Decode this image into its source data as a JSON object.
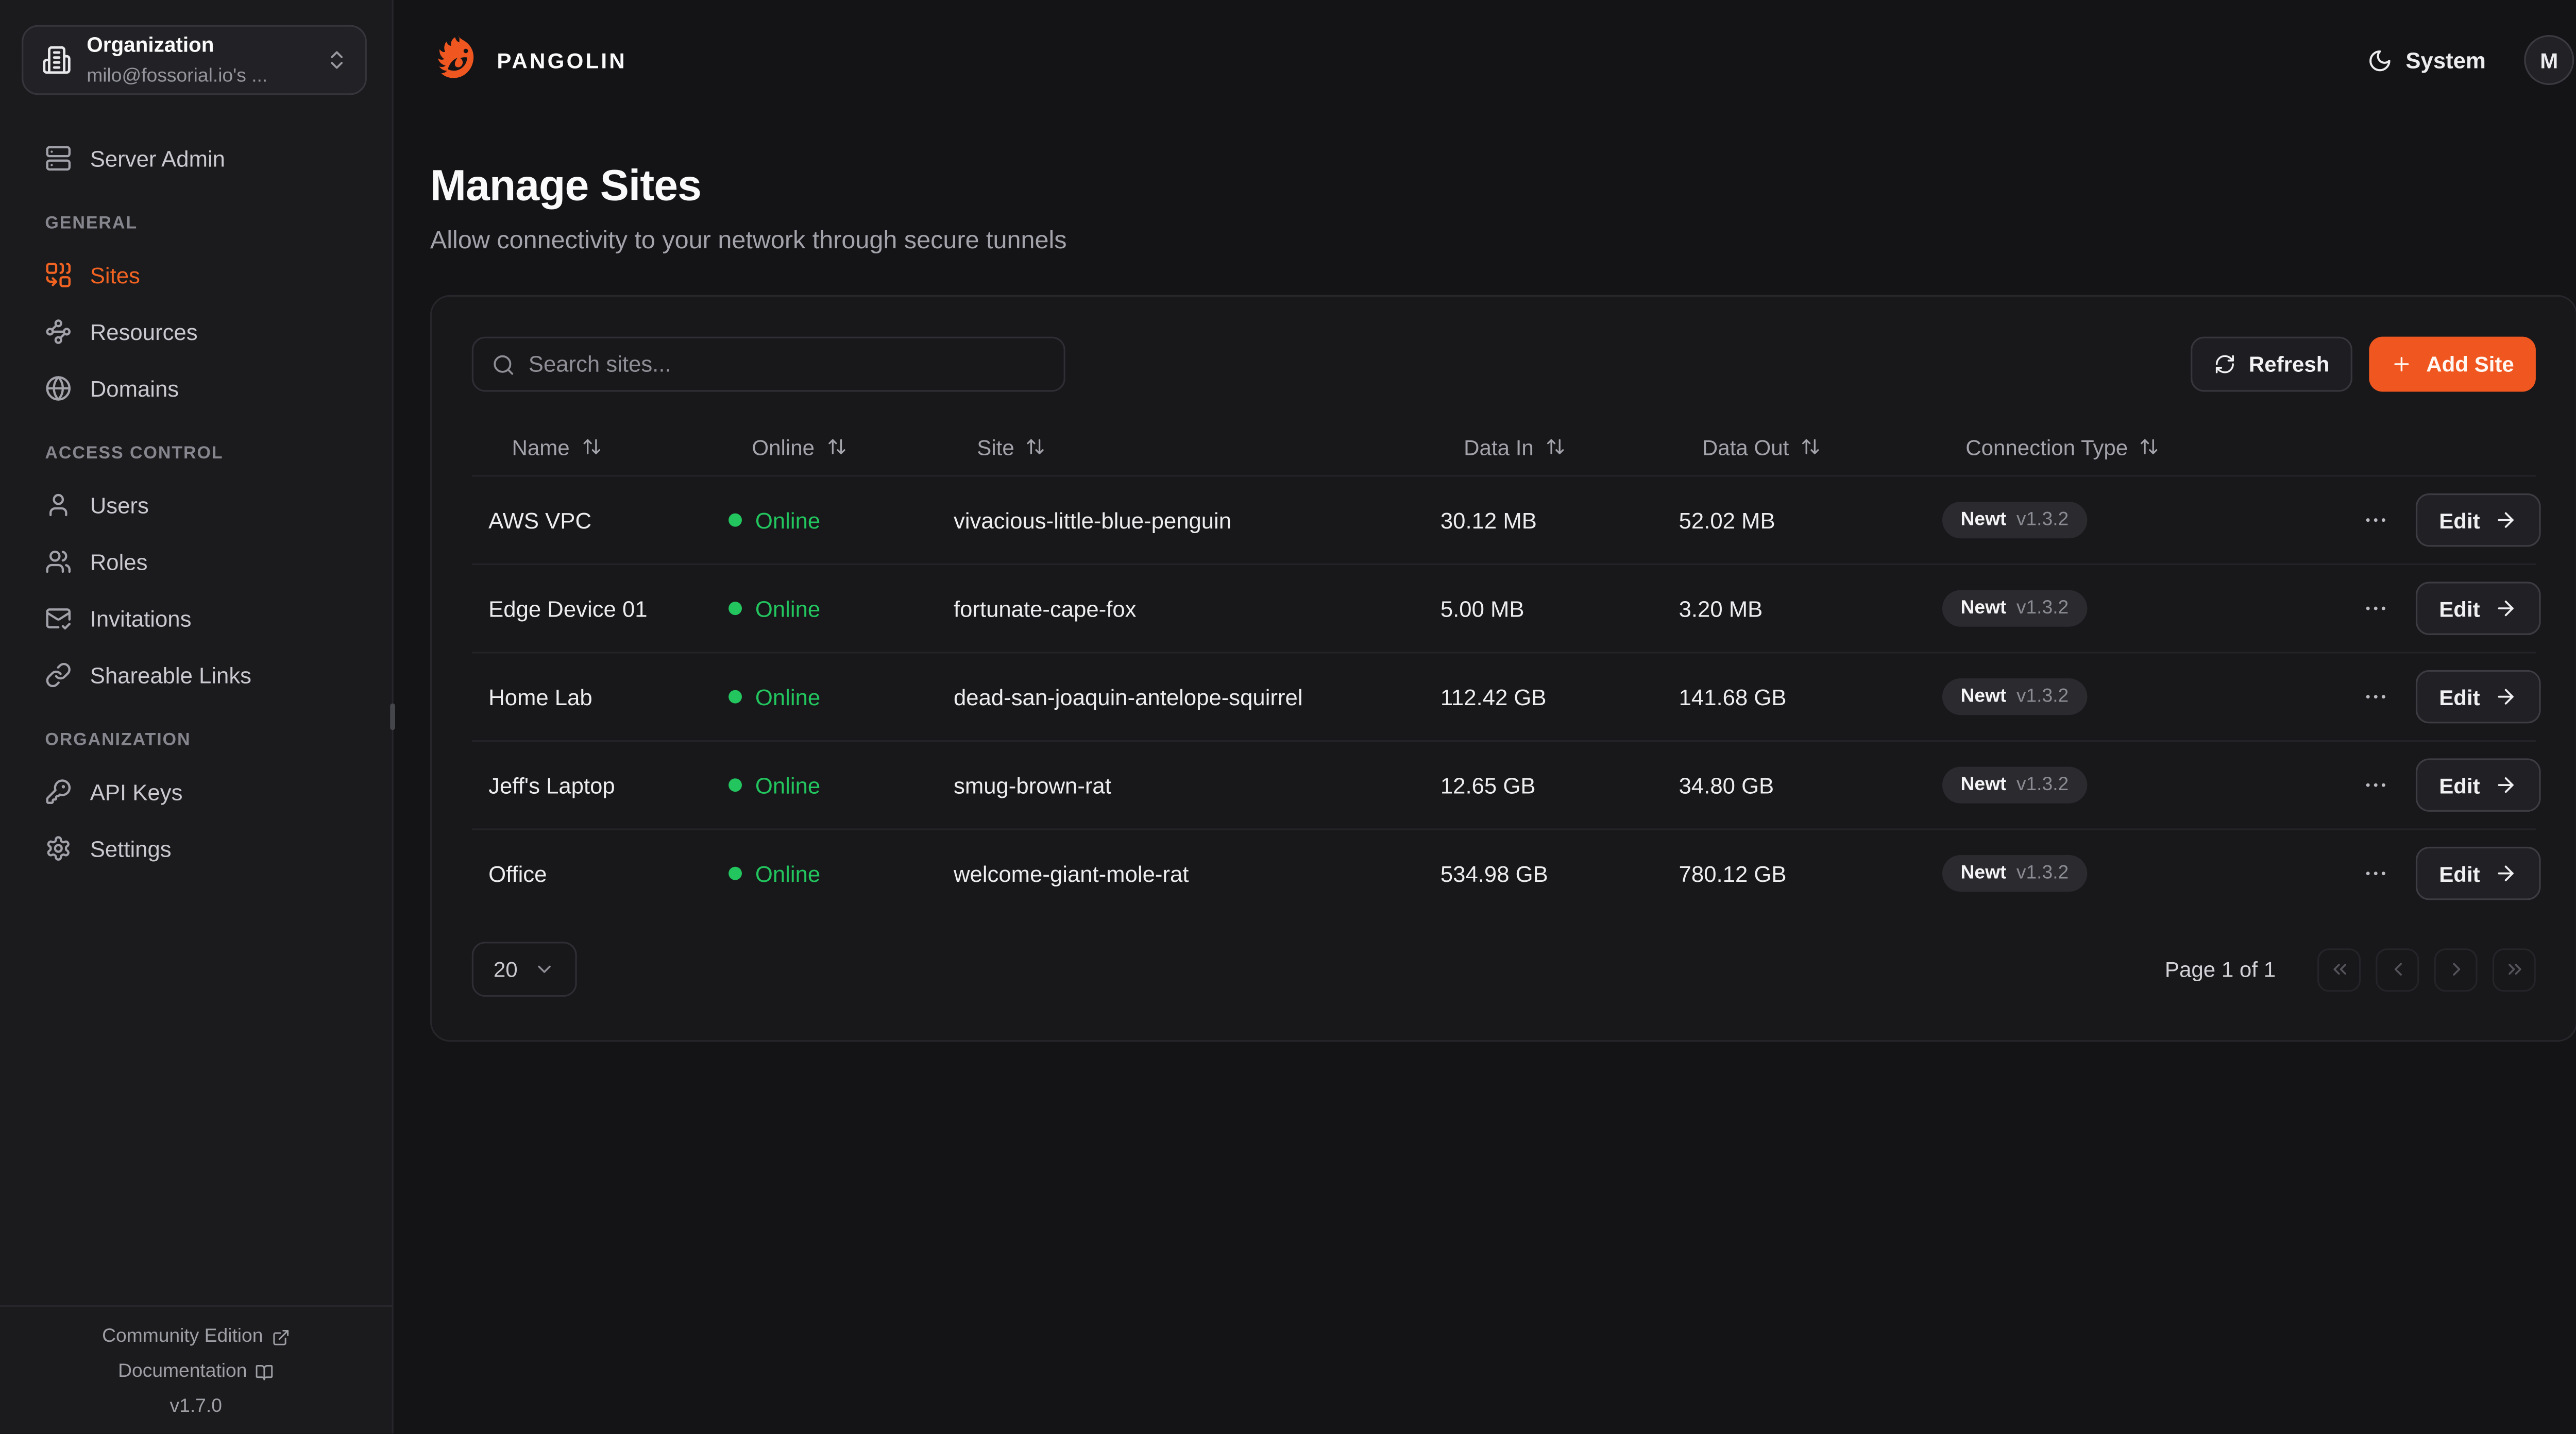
{
  "brand": {
    "name": "PANGOLIN"
  },
  "org_selector": {
    "label": "Organization",
    "value": "milo@fossorial.io's ..."
  },
  "sidebar": {
    "top_item": {
      "label": "Server Admin",
      "icon": "server-icon"
    },
    "sections": [
      {
        "title": "GENERAL",
        "items": [
          {
            "label": "Sites",
            "icon": "combine-icon",
            "active": true
          },
          {
            "label": "Resources",
            "icon": "waypoints-icon"
          },
          {
            "label": "Domains",
            "icon": "globe-icon"
          }
        ]
      },
      {
        "title": "ACCESS CONTROL",
        "items": [
          {
            "label": "Users",
            "icon": "user-icon"
          },
          {
            "label": "Roles",
            "icon": "users-icon"
          },
          {
            "label": "Invitations",
            "icon": "mail-check-icon"
          },
          {
            "label": "Shareable Links",
            "icon": "link-icon"
          }
        ]
      },
      {
        "title": "ORGANIZATION",
        "items": [
          {
            "label": "API Keys",
            "icon": "key-icon"
          },
          {
            "label": "Settings",
            "icon": "settings-icon"
          }
        ]
      }
    ],
    "footer": {
      "community_edition": "Community Edition",
      "documentation": "Documentation",
      "version": "v1.7.0"
    }
  },
  "topbar": {
    "theme_toggle_label": "System",
    "avatar_initial": "M"
  },
  "page": {
    "title": "Manage Sites",
    "subtitle": "Allow connectivity to your network through secure tunnels"
  },
  "toolbar": {
    "search_placeholder": "Search sites...",
    "refresh_label": "Refresh",
    "add_site_label": "Add Site"
  },
  "table": {
    "columns": [
      "Name",
      "Online",
      "Site",
      "Data In",
      "Data Out",
      "Connection Type"
    ],
    "rows": [
      {
        "name": "AWS VPC",
        "status": "Online",
        "site": "vivacious-little-blue-penguin",
        "data_in": "30.12 MB",
        "data_out": "52.02 MB",
        "connection_type": "Newt",
        "connection_version": "v1.3.2",
        "edit_label": "Edit"
      },
      {
        "name": "Edge Device 01",
        "status": "Online",
        "site": "fortunate-cape-fox",
        "data_in": "5.00 MB",
        "data_out": "3.20 MB",
        "connection_type": "Newt",
        "connection_version": "v1.3.2",
        "edit_label": "Edit"
      },
      {
        "name": "Home Lab",
        "status": "Online",
        "site": "dead-san-joaquin-antelope-squirrel",
        "data_in": "112.42 GB",
        "data_out": "141.68 GB",
        "connection_type": "Newt",
        "connection_version": "v1.3.2",
        "edit_label": "Edit"
      },
      {
        "name": "Jeff's Laptop",
        "status": "Online",
        "site": "smug-brown-rat",
        "data_in": "12.65 GB",
        "data_out": "34.80 GB",
        "connection_type": "Newt",
        "connection_version": "v1.3.2",
        "edit_label": "Edit"
      },
      {
        "name": "Office",
        "status": "Online",
        "site": "welcome-giant-mole-rat",
        "data_in": "534.98 GB",
        "data_out": "780.12 GB",
        "connection_type": "Newt",
        "connection_version": "v1.3.2",
        "edit_label": "Edit"
      }
    ]
  },
  "pagination": {
    "page_size": "20",
    "page_info": "Page 1 of 1"
  },
  "colors": {
    "accent": "#F0561F",
    "online_green": "#22C55E"
  }
}
